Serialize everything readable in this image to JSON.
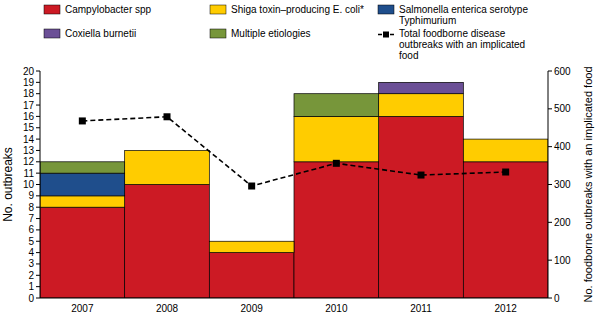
{
  "chart_data": {
    "type": "bar",
    "stacked": true,
    "grid": false,
    "legend": "top",
    "y_label": "No. outbreaks",
    "y2_label": "No. foodborne outbreaks with an implicated food",
    "categories": [
      "2007",
      "2008",
      "2009",
      "2010",
      "2011",
      "2012"
    ],
    "ylim": [
      0,
      20
    ],
    "yticks": [
      0,
      1,
      2,
      3,
      4,
      5,
      6,
      7,
      8,
      9,
      10,
      11,
      12,
      13,
      14,
      15,
      16,
      17,
      18,
      19,
      20
    ],
    "y2lim": [
      0,
      600
    ],
    "y2ticks": [
      0,
      100,
      200,
      300,
      400,
      500,
      600
    ],
    "series": [
      {
        "name": "Campylobacter spp",
        "type": "bar",
        "color": "#cc1a24",
        "values": [
          8,
          10,
          4,
          12,
          16,
          12
        ]
      },
      {
        "name": "Shiga toxin–producing E. coli*",
        "type": "bar",
        "color": "#ffcc00",
        "values": [
          1,
          3,
          1,
          4,
          2,
          2
        ]
      },
      {
        "name": "Salmonella enterica serotype Typhimurium",
        "type": "bar",
        "color": "#1f4e8c",
        "values": [
          2,
          0,
          0,
          0,
          0,
          0
        ]
      },
      {
        "name": "Coxiella burnetii",
        "type": "bar",
        "color": "#6b4f96",
        "values": [
          0,
          0,
          0,
          0,
          1,
          0
        ]
      },
      {
        "name": "Multiple etiologies",
        "type": "bar",
        "color": "#77963a",
        "values": [
          1,
          0,
          0,
          2,
          0,
          0
        ]
      },
      {
        "name": "Total foodborne disease outbreaks with an implicated food",
        "type": "line",
        "axis": "y2",
        "color": "#000000",
        "marker": "square",
        "line_style": "dashed",
        "values": [
          468,
          479,
          296,
          356,
          325,
          333
        ]
      }
    ]
  }
}
